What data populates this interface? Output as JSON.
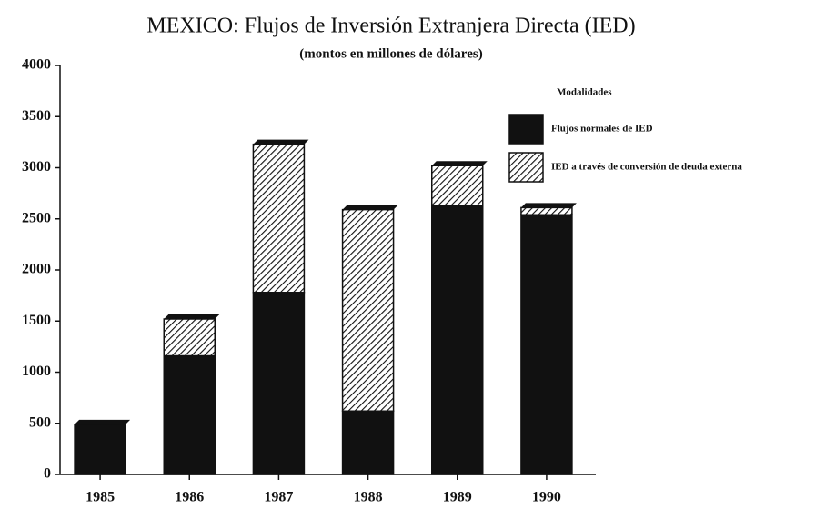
{
  "chart_data": {
    "type": "bar",
    "stacked": true,
    "title": "MEXICO: Flujos de Inversión Extranjera Directa (IED)",
    "subtitle": "(montos en millones de dólares)",
    "categories": [
      "1985",
      "1986",
      "1987",
      "1988",
      "1989",
      "1990"
    ],
    "series": [
      {
        "name": "Flujos normales de IED",
        "color": "#111111",
        "values": [
          490,
          1160,
          1780,
          620,
          2630,
          2540
        ]
      },
      {
        "name": "IED a través de conversión de deuda externa",
        "color": "#111111",
        "pattern": "hatch",
        "values": [
          0,
          360,
          1450,
          1970,
          390,
          70
        ]
      }
    ],
    "legend_title": "Modalidades",
    "legend": "upper right",
    "ylim": [
      0,
      4000
    ],
    "yticks": [
      0,
      500,
      1000,
      1500,
      2000,
      2500,
      3000,
      3500,
      4000
    ]
  }
}
